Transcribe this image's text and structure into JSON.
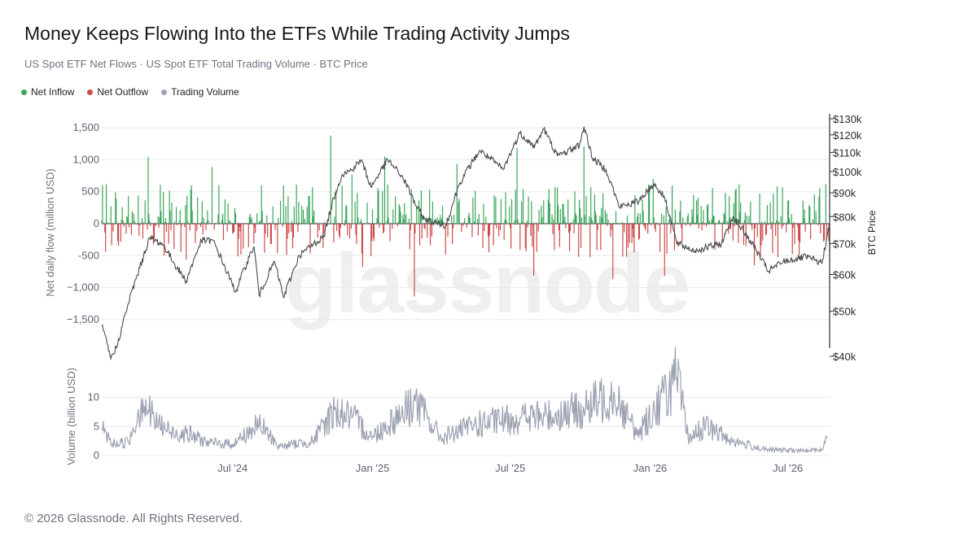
{
  "title": "Money Keeps Flowing Into the ETFs While Trading Activity Jumps",
  "subtitle": "US Spot ETF Net Flows · US Spot ETF Total Trading Volume · BTC Price",
  "legend": [
    {
      "label": "Net Inflow",
      "color": "#3aa55b"
    },
    {
      "label": "Net Outflow",
      "color": "#cc4b4b"
    },
    {
      "label": "Trading Volume",
      "color": "#9ea3b3"
    }
  ],
  "watermark": "glassnode",
  "footer": "© 2026 Glassnode. All Rights Reserved.",
  "colors": {
    "inflow": "#3aa55b",
    "outflow": "#cc4b4b",
    "price": "#4a4a4a",
    "volume": "#9ea3b3",
    "grid": "#e7e8ec"
  },
  "chart_data": [
    {
      "type": "bar",
      "name": "flows",
      "ylabel": "Net daily flow (million USD)",
      "ylim": [
        -1750,
        1500
      ],
      "yticks": [
        1500,
        1000,
        500,
        0,
        -500,
        -1000,
        -1500
      ],
      "ytick_labels": [
        "1,500",
        "1,000",
        "500",
        "0",
        "-500",
        "−1,000",
        "−1,500"
      ],
      "y2label": "BTC Price",
      "y2scale": "log",
      "y2ticks": [
        130000,
        120000,
        110000,
        100000,
        90000,
        80000,
        70000,
        60000,
        50000,
        40000
      ],
      "y2tick_labels": [
        "$130k",
        "$120k",
        "$110k",
        "$100k",
        "$90k",
        "$80k",
        "$70k",
        "$60k",
        "$50k",
        "$40k"
      ],
      "grid": true,
      "date_range": [
        "2024-01-11",
        "2026-08-25"
      ],
      "flow_highlights": [
        {
          "date": "2024-03-12",
          "value": 1045
        },
        {
          "date": "2024-03-19",
          "value": -326
        },
        {
          "date": "2024-05-01",
          "value": -563
        },
        {
          "date": "2024-06-04",
          "value": 887
        },
        {
          "date": "2024-11-07",
          "value": 1380
        },
        {
          "date": "2024-12-05",
          "value": 766
        },
        {
          "date": "2024-12-19",
          "value": -680
        },
        {
          "date": "2025-01-17",
          "value": 1050
        },
        {
          "date": "2025-02-25",
          "value": -1140
        },
        {
          "date": "2025-04-22",
          "value": 936
        },
        {
          "date": "2025-07-10",
          "value": 1180
        },
        {
          "date": "2025-08-01",
          "value": -812
        },
        {
          "date": "2025-10-06",
          "value": 1210
        },
        {
          "date": "2025-11-13",
          "value": -870
        },
        {
          "date": "2026-01-05",
          "value": 700
        },
        {
          "date": "2026-01-20",
          "value": -820
        },
        {
          "date": "2026-04-10",
          "value": 480
        },
        {
          "date": "2026-05-18",
          "value": -650
        },
        {
          "date": "2026-08-20",
          "value": 620
        }
      ],
      "price_series": [
        {
          "date": "2024-01-11",
          "value": 46500
        },
        {
          "date": "2024-01-23",
          "value": 39500
        },
        {
          "date": "2024-02-01",
          "value": 42500
        },
        {
          "date": "2024-02-15",
          "value": 52000
        },
        {
          "date": "2024-03-01",
          "value": 62000
        },
        {
          "date": "2024-03-14",
          "value": 72000
        },
        {
          "date": "2024-04-01",
          "value": 69500
        },
        {
          "date": "2024-04-15",
          "value": 63500
        },
        {
          "date": "2024-05-01",
          "value": 58000
        },
        {
          "date": "2024-05-21",
          "value": 71000
        },
        {
          "date": "2024-06-05",
          "value": 71000
        },
        {
          "date": "2024-06-24",
          "value": 60500
        },
        {
          "date": "2024-07-05",
          "value": 55000
        },
        {
          "date": "2024-07-29",
          "value": 69000
        },
        {
          "date": "2024-08-05",
          "value": 54000
        },
        {
          "date": "2024-08-25",
          "value": 64000
        },
        {
          "date": "2024-09-06",
          "value": 53500
        },
        {
          "date": "2024-09-27",
          "value": 66000
        },
        {
          "date": "2024-10-29",
          "value": 72500
        },
        {
          "date": "2024-11-13",
          "value": 90000
        },
        {
          "date": "2024-11-22",
          "value": 98500
        },
        {
          "date": "2024-12-05",
          "value": 101000
        },
        {
          "date": "2024-12-17",
          "value": 106000
        },
        {
          "date": "2024-12-30",
          "value": 92500
        },
        {
          "date": "2025-01-21",
          "value": 106000
        },
        {
          "date": "2025-02-10",
          "value": 97000
        },
        {
          "date": "2025-02-28",
          "value": 84000
        },
        {
          "date": "2025-03-10",
          "value": 79000
        },
        {
          "date": "2025-04-08",
          "value": 76500
        },
        {
          "date": "2025-04-25",
          "value": 94000
        },
        {
          "date": "2025-05-22",
          "value": 111000
        },
        {
          "date": "2025-06-22",
          "value": 101000
        },
        {
          "date": "2025-07-14",
          "value": 121000
        },
        {
          "date": "2025-08-02",
          "value": 113000
        },
        {
          "date": "2025-08-14",
          "value": 123500
        },
        {
          "date": "2025-09-01",
          "value": 108000
        },
        {
          "date": "2025-09-30",
          "value": 114000
        },
        {
          "date": "2025-10-06",
          "value": 125000
        },
        {
          "date": "2025-10-17",
          "value": 107000
        },
        {
          "date": "2025-11-04",
          "value": 101000
        },
        {
          "date": "2025-11-21",
          "value": 84000
        },
        {
          "date": "2025-12-15",
          "value": 86000
        },
        {
          "date": "2026-01-06",
          "value": 94000
        },
        {
          "date": "2026-01-20",
          "value": 88000
        },
        {
          "date": "2026-02-05",
          "value": 70000
        },
        {
          "date": "2026-03-01",
          "value": 67500
        },
        {
          "date": "2026-04-05",
          "value": 70000
        },
        {
          "date": "2026-04-20",
          "value": 80000
        },
        {
          "date": "2026-05-15",
          "value": 70000
        },
        {
          "date": "2026-06-05",
          "value": 61000
        },
        {
          "date": "2026-06-25",
          "value": 64000
        },
        {
          "date": "2026-07-25",
          "value": 65500
        },
        {
          "date": "2026-08-15",
          "value": 63500
        },
        {
          "date": "2026-08-25",
          "value": 77000
        }
      ]
    },
    {
      "type": "line",
      "name": "volume",
      "ylabel": "Volume (billion USD)",
      "ylim": [
        0,
        14
      ],
      "yticks": [
        0,
        5,
        10
      ],
      "ytick_labels": [
        "0",
        "5",
        "10"
      ],
      "x_tick_labels": [
        "Jul '24",
        "Jan '25",
        "Jul '25",
        "Jan '26",
        "Jul '26"
      ],
      "x_tick_dates": [
        "2024-07-01",
        "2025-01-01",
        "2025-07-01",
        "2026-01-01",
        "2026-07-01"
      ],
      "series": [
        {
          "date": "2024-01-11",
          "value": 4.6
        },
        {
          "date": "2024-01-25",
          "value": 2.0
        },
        {
          "date": "2024-02-15",
          "value": 2.3
        },
        {
          "date": "2024-03-05",
          "value": 9.7
        },
        {
          "date": "2024-03-20",
          "value": 6.0
        },
        {
          "date": "2024-04-10",
          "value": 4.0
        },
        {
          "date": "2024-05-01",
          "value": 3.8
        },
        {
          "date": "2024-06-01",
          "value": 2.1
        },
        {
          "date": "2024-07-01",
          "value": 2.0
        },
        {
          "date": "2024-08-05",
          "value": 5.3
        },
        {
          "date": "2024-09-01",
          "value": 1.5
        },
        {
          "date": "2024-10-15",
          "value": 2.5
        },
        {
          "date": "2024-11-12",
          "value": 7.8
        },
        {
          "date": "2024-12-05",
          "value": 6.5
        },
        {
          "date": "2025-01-01",
          "value": 3.2
        },
        {
          "date": "2025-02-26",
          "value": 9.3
        },
        {
          "date": "2025-04-01",
          "value": 3.0
        },
        {
          "date": "2025-05-15",
          "value": 5.2
        },
        {
          "date": "2025-07-15",
          "value": 6.5
        },
        {
          "date": "2025-08-15",
          "value": 6.7
        },
        {
          "date": "2025-10-10",
          "value": 8.0
        },
        {
          "date": "2025-11-14",
          "value": 11.0
        },
        {
          "date": "2025-12-15",
          "value": 3.5
        },
        {
          "date": "2026-02-05",
          "value": 13.5
        },
        {
          "date": "2026-02-20",
          "value": 3.0
        },
        {
          "date": "2026-03-15",
          "value": 5.0
        },
        {
          "date": "2026-04-20",
          "value": 2.5
        },
        {
          "date": "2026-06-01",
          "value": 1.0
        },
        {
          "date": "2026-07-20",
          "value": 0.8
        },
        {
          "date": "2026-08-15",
          "value": 1.0
        },
        {
          "date": "2026-08-22",
          "value": 3.0
        }
      ]
    }
  ]
}
